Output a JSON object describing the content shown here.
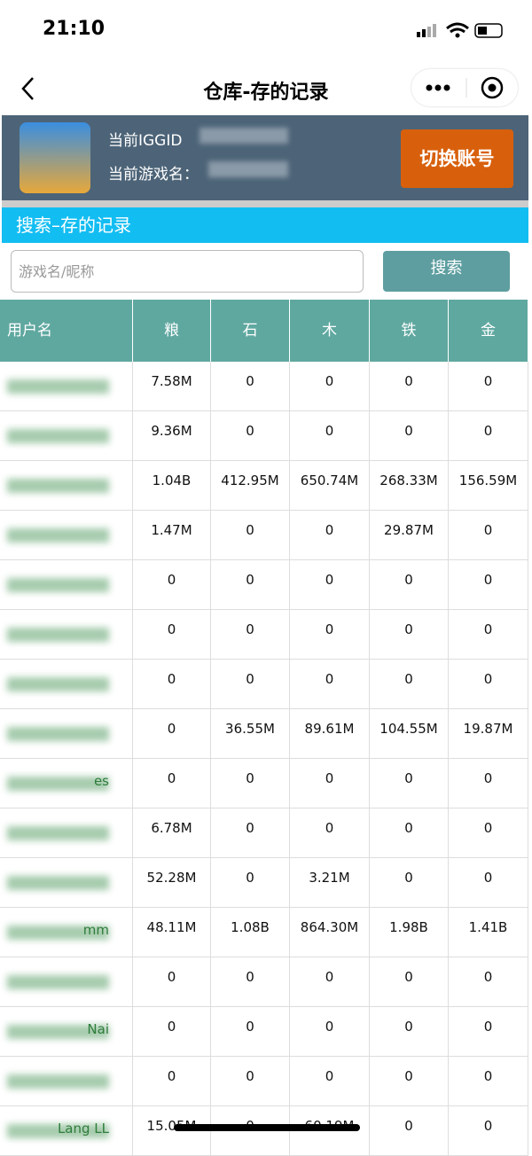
{
  "status_bar": {
    "time": "21:10"
  },
  "nav": {
    "title": "仓库-存的记录"
  },
  "account": {
    "iggid_label": "当前IGGID",
    "name_label": "当前游戏名：",
    "switch_button": "切换账号"
  },
  "search": {
    "section_title": "搜索–存的记录",
    "placeholder": "游戏名/昵称",
    "button": "搜索"
  },
  "table": {
    "columns": [
      "用户名",
      "粮",
      "石",
      "木",
      "铁",
      "金"
    ],
    "rows": [
      [
        null,
        "7.58M",
        "0",
        "0",
        "0",
        "0"
      ],
      [
        null,
        "9.36M",
        "0",
        "0",
        "0",
        "0"
      ],
      [
        null,
        "1.04B",
        "412.95M",
        "650.74M",
        "268.33M",
        "156.59M"
      ],
      [
        null,
        "1.47M",
        "0",
        "0",
        "29.87M",
        "0"
      ],
      [
        null,
        "0",
        "0",
        "0",
        "0",
        "0"
      ],
      [
        null,
        "0",
        "0",
        "0",
        "0",
        "0"
      ],
      [
        null,
        "0",
        "0",
        "0",
        "0",
        "0"
      ],
      [
        null,
        "0",
        "36.55M",
        "89.61M",
        "104.55M",
        "19.87M"
      ],
      [
        "es",
        "0",
        "0",
        "0",
        "0",
        "0"
      ],
      [
        null,
        "6.78M",
        "0",
        "0",
        "0",
        "0"
      ],
      [
        null,
        "52.28M",
        "0",
        "3.21M",
        "0",
        "0"
      ],
      [
        "mm",
        "48.11M",
        "1.08B",
        "864.30M",
        "1.98B",
        "1.41B"
      ],
      [
        null,
        "0",
        "0",
        "0",
        "0",
        "0"
      ],
      [
        "Nai",
        "0",
        "0",
        "0",
        "0",
        "0"
      ],
      [
        null,
        "0",
        "0",
        "0",
        "0",
        "0"
      ],
      [
        "Lang LL",
        "15.05M",
        "0",
        "60.19M",
        "0",
        "0"
      ]
    ]
  }
}
